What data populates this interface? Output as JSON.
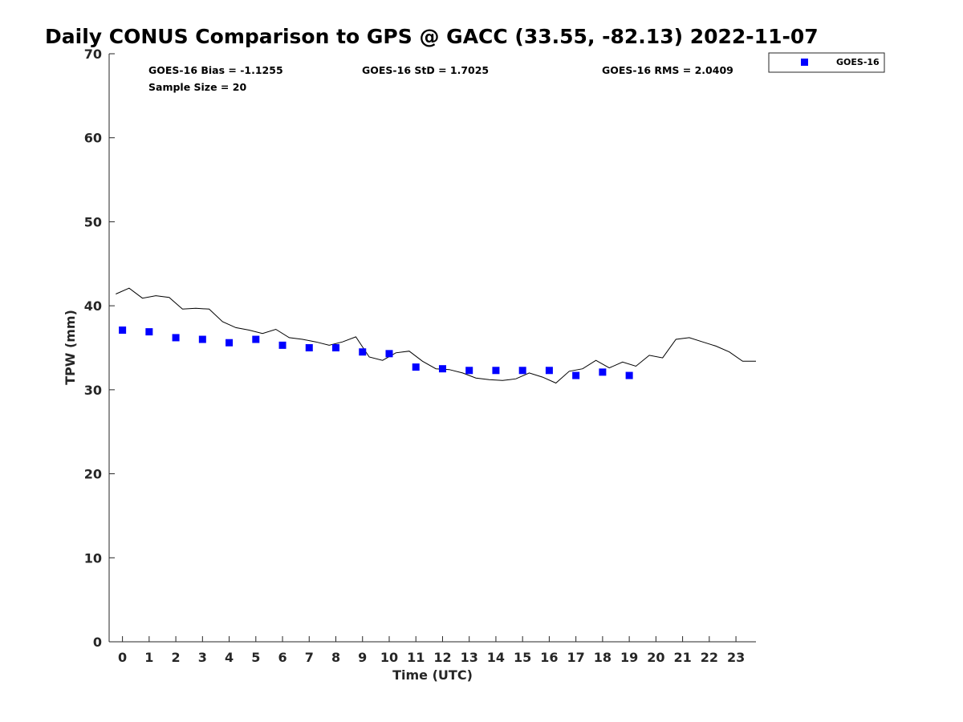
{
  "chart_data": {
    "type": "scatter",
    "title": "Daily CONUS Comparison to GPS @ GACC (33.55, -82.13) 2022-11-07",
    "xlabel": "Time (UTC)",
    "ylabel": "TPW (mm)",
    "xlim": [
      -0.5,
      23.75
    ],
    "ylim": [
      0,
      70
    ],
    "x_ticks": [
      0,
      1,
      2,
      3,
      4,
      5,
      6,
      7,
      8,
      9,
      10,
      11,
      12,
      13,
      14,
      15,
      16,
      17,
      18,
      19,
      20,
      21,
      22,
      23
    ],
    "y_ticks": [
      0,
      10,
      20,
      30,
      40,
      50,
      60,
      70
    ],
    "grid": false,
    "legend_position": "top-right outside",
    "stats": {
      "bias": "GOES-16 Bias = -1.1255",
      "std": "GOES-16 StD = 1.7025",
      "rms": "GOES-16 RMS = 2.0409",
      "sample": "Sample Size = 20"
    },
    "series": [
      {
        "name": "GOES-16",
        "kind": "scatter",
        "color": "#0000ff",
        "marker": "square",
        "x": [
          0,
          1,
          2,
          3,
          4,
          5,
          6,
          7,
          8,
          9,
          10,
          11,
          12,
          13,
          14,
          15,
          16,
          17,
          18,
          19
        ],
        "y": [
          37.1,
          36.9,
          36.2,
          36.0,
          35.6,
          36.0,
          35.3,
          35.0,
          35.0,
          34.5,
          34.3,
          32.7,
          32.5,
          32.3,
          32.3,
          32.3,
          32.3,
          31.7,
          32.1,
          31.7
        ]
      },
      {
        "kind": "line",
        "color": "#000000",
        "x": [
          -0.25,
          0.25,
          0.75,
          1.25,
          1.75,
          2.25,
          2.75,
          3.25,
          3.75,
          4.25,
          4.75,
          5.25,
          5.75,
          6.25,
          6.75,
          7.25,
          7.75,
          8.25,
          8.75,
          9.25,
          9.75,
          10.25,
          10.75,
          11.25,
          11.75,
          12.25,
          12.75,
          13.25,
          13.75,
          14.25,
          14.75,
          15.25,
          15.75,
          16.25,
          16.75,
          17.25,
          17.75,
          18.25,
          18.75,
          19.25,
          19.75,
          20.25,
          20.75,
          21.25,
          21.75,
          22.25,
          22.75,
          23.25,
          23.75
        ],
        "y": [
          41.4,
          42.1,
          40.9,
          41.2,
          41.0,
          39.6,
          39.7,
          39.6,
          38.1,
          37.4,
          37.1,
          36.7,
          37.2,
          36.2,
          36.0,
          35.7,
          35.3,
          35.7,
          36.3,
          33.9,
          33.5,
          34.4,
          34.6,
          33.4,
          32.5,
          32.4,
          32.0,
          31.4,
          31.2,
          31.1,
          31.3,
          32.0,
          31.5,
          30.8,
          32.2,
          32.5,
          33.5,
          32.6,
          33.3,
          32.8,
          34.1,
          33.8,
          36.0,
          36.2,
          35.7,
          35.2,
          34.5,
          33.4,
          33.4
        ]
      }
    ]
  }
}
